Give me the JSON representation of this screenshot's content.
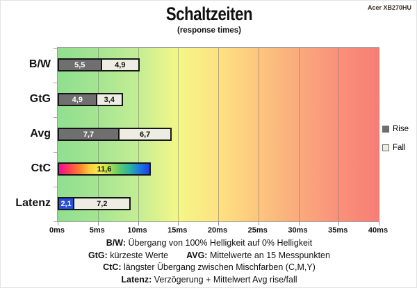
{
  "header": {
    "title": "Schaltzeiten",
    "subtitle": "(response times)",
    "device": "Acer XB270HU"
  },
  "chart_data": {
    "type": "bar",
    "orientation": "horizontal",
    "title": "Schaltzeiten (response times)",
    "unit": "ms",
    "x_axis": {
      "min": 0,
      "max": 40,
      "ticks": [
        "0ms",
        "5ms",
        "10ms",
        "15ms",
        "20ms",
        "25ms",
        "30ms",
        "35ms",
        "40ms"
      ]
    },
    "categories": [
      "B/W",
      "GtG",
      "Avg",
      "CtC",
      "Latenz"
    ],
    "rows": [
      {
        "label": "B/W",
        "segments": [
          {
            "value": 5.5,
            "display": "5,5",
            "style": "rise"
          },
          {
            "value": 4.9,
            "display": "4,9",
            "style": "fall"
          }
        ]
      },
      {
        "label": "GtG",
        "segments": [
          {
            "value": 4.9,
            "display": "4,9",
            "style": "rise"
          },
          {
            "value": 3.4,
            "display": "3,4",
            "style": "fall"
          }
        ]
      },
      {
        "label": "Avg",
        "segments": [
          {
            "value": 7.7,
            "display": "7,7",
            "style": "rise"
          },
          {
            "value": 6.7,
            "display": "6,7",
            "style": "fall"
          }
        ]
      },
      {
        "label": "CtC",
        "segments": [
          {
            "value": 11.6,
            "display": "11,6",
            "style": "rainbow"
          }
        ]
      },
      {
        "label": "Latenz",
        "segments": [
          {
            "value": 2.1,
            "display": "2,1",
            "style": "latency"
          },
          {
            "value": 7.2,
            "display": "7,2",
            "style": "fall"
          }
        ]
      }
    ],
    "legend": [
      {
        "label": "Rise",
        "style": "rise"
      },
      {
        "label": "Fall",
        "style": "fall"
      }
    ],
    "legend_position": "right",
    "grid": true,
    "colors": {
      "rise": "#6f6f6f",
      "rise_text": "#ffffff",
      "fall": "#eeede3",
      "fall_text": "#111111",
      "latency": "#2850e0",
      "latency_text": "#ffffff",
      "rainbow_text": "#111111",
      "rainbow_stops": [
        "#f00c9e",
        "#fb4050",
        "#fc7d31",
        "#fbc93c",
        "#f0ee55",
        "#b4e04e",
        "#62c96c",
        "#2ab5a0",
        "#1f79dc",
        "#1c41e9"
      ],
      "scale_gradient": [
        "#8fdf90",
        "#a6e591",
        "#c4ed94",
        "#f4f787",
        "#fee283",
        "#fcc67e",
        "#faaa7d",
        "#f9917a",
        "#f87d74"
      ]
    }
  },
  "footnotes": [
    {
      "parts": [
        {
          "text": "B/W:",
          "bold": true
        },
        {
          "text": " Übergang von 100% Helligkeit auf 0% Helligkeit",
          "bold": false
        }
      ]
    },
    {
      "parts": [
        {
          "text": "GtG:",
          "bold": true
        },
        {
          "text": " kürzeste Werte",
          "bold": false
        },
        {
          "text": "",
          "bold": false,
          "gap": true
        },
        {
          "text": "AVG:",
          "bold": true
        },
        {
          "text": " Mittelwerte an 15 Messpunkten",
          "bold": false
        }
      ]
    },
    {
      "parts": [
        {
          "text": "CtC:",
          "bold": true
        },
        {
          "text": " längster Übergang zwischen Mischfarben (C,M,Y)",
          "bold": false
        }
      ]
    },
    {
      "parts": [
        {
          "text": "Latenz:",
          "bold": true
        },
        {
          "text": " Verzögerung + Mittelwert Avg rise/fall",
          "bold": false
        }
      ]
    }
  ]
}
